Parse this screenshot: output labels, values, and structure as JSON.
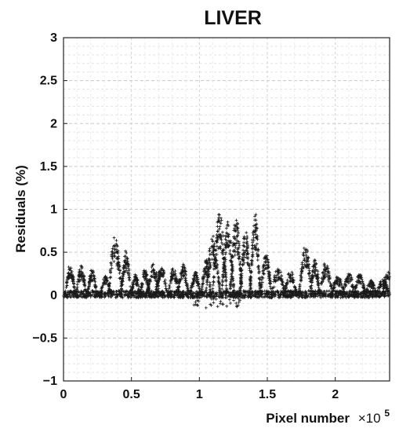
{
  "chart_data": {
    "type": "scatter",
    "title": "LIVER",
    "xlabel": "Pixel number",
    "x_multiplier": "×10",
    "x_multiplier_exp": "5",
    "ylabel": "Residuals (%)",
    "xlim": [
      0,
      2.4
    ],
    "ylim": [
      -1,
      3
    ],
    "xticks": [
      0,
      0.5,
      1,
      1.5,
      2
    ],
    "xtick_labels": [
      "0",
      "0.5",
      "1",
      "1.5",
      "2"
    ],
    "yticks": [
      -1,
      -0.5,
      0,
      0.5,
      1,
      1.5,
      2,
      2.5,
      3
    ],
    "ytick_labels": [
      "−1",
      "−0.5",
      "0",
      "0.5",
      "1",
      "1.5",
      "2",
      "2.5",
      "3"
    ],
    "grid": true,
    "marker": "+",
    "marker_color": "#1a1a1a",
    "series": [
      {
        "envelope_peaks": [
          {
            "x": 0.05,
            "y": 0.36
          },
          {
            "x": 0.13,
            "y": 0.35
          },
          {
            "x": 0.21,
            "y": 0.3
          },
          {
            "x": 0.31,
            "y": 0.22
          },
          {
            "x": 0.38,
            "y": 0.68
          },
          {
            "x": 0.46,
            "y": 0.52
          },
          {
            "x": 0.53,
            "y": 0.24
          },
          {
            "x": 0.6,
            "y": 0.3
          },
          {
            "x": 0.66,
            "y": 0.37
          },
          {
            "x": 0.72,
            "y": 0.35
          },
          {
            "x": 0.81,
            "y": 0.33
          },
          {
            "x": 0.88,
            "y": 0.36
          },
          {
            "x": 0.97,
            "y": 0.28
          },
          {
            "x": 1.05,
            "y": 0.42
          },
          {
            "x": 1.1,
            "y": 0.7
          },
          {
            "x": 1.15,
            "y": 0.98
          },
          {
            "x": 1.21,
            "y": 0.85
          },
          {
            "x": 1.27,
            "y": 0.9
          },
          {
            "x": 1.34,
            "y": 0.75
          },
          {
            "x": 1.41,
            "y": 0.97
          },
          {
            "x": 1.49,
            "y": 0.5
          },
          {
            "x": 1.58,
            "y": 0.32
          },
          {
            "x": 1.67,
            "y": 0.28
          },
          {
            "x": 1.78,
            "y": 0.58
          },
          {
            "x": 1.85,
            "y": 0.45
          },
          {
            "x": 1.93,
            "y": 0.38
          },
          {
            "x": 2.02,
            "y": 0.22
          },
          {
            "x": 2.1,
            "y": 0.25
          },
          {
            "x": 2.18,
            "y": 0.24
          },
          {
            "x": 2.26,
            "y": 0.18
          },
          {
            "x": 2.35,
            "y": 0.2
          },
          {
            "x": 2.39,
            "y": 0.28
          }
        ],
        "min_value": -0.15
      }
    ]
  }
}
